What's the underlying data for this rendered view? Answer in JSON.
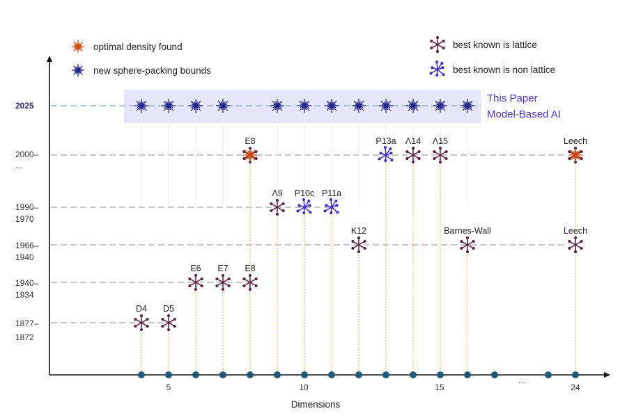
{
  "colors": {
    "lattice": "#5a1e3c",
    "non_lattice": "#3e2ad0",
    "optimal": "#d04a10",
    "new_bounds": "#26268c",
    "dimension_dot": "#1e5a78",
    "vline": "#f2c878",
    "gridline": "#b4b4b4",
    "band": "#e6e6fa",
    "paper_text": "#4a32c8"
  },
  "legend": {
    "optimal": "optimal density found",
    "new_bounds": "new sphere-packing bounds",
    "lattice": "best known is lattice",
    "non_lattice": "best known is non lattice"
  },
  "paper": {
    "line1": "This Paper",
    "line2": "Model-Based AI"
  },
  "x_axis": {
    "title": "Dimensions",
    "ticks": [
      "5",
      "10",
      "15",
      "24"
    ],
    "ellipsis": "..."
  },
  "chart_data": {
    "type": "scatter",
    "xlabel": "Dimensions",
    "ylabel": "",
    "y_categories": [
      [
        "1877–",
        "1872"
      ],
      [
        "1940–",
        "1934"
      ],
      [
        "1966–",
        "1940"
      ],
      [
        "1990–",
        "1970"
      ],
      [
        "2000–",
        "..."
      ],
      [
        "2025"
      ]
    ],
    "dimension_dots": [
      4,
      5,
      6,
      7,
      8,
      9,
      10,
      11,
      12,
      13,
      14,
      15,
      16,
      17,
      19,
      20
    ],
    "dimension_dots_note": "positions 17, 19, 20 shown; 19 and 20 stand for 23 and 24 on the compressed axis",
    "packings": [
      {
        "label": "D4",
        "dim": 4,
        "era": 0,
        "kind": "lattice"
      },
      {
        "label": "D5",
        "dim": 5,
        "era": 0,
        "kind": "lattice"
      },
      {
        "label": "E6",
        "dim": 6,
        "era": 1,
        "kind": "lattice"
      },
      {
        "label": "E7",
        "dim": 7,
        "era": 1,
        "kind": "lattice"
      },
      {
        "label": "E8",
        "dim": 8,
        "era": 1,
        "kind": "lattice"
      },
      {
        "label": "K12",
        "dim": 12,
        "era": 2,
        "kind": "lattice"
      },
      {
        "label": "Barnes-Wall",
        "dim": 16,
        "era": 2,
        "kind": "lattice"
      },
      {
        "label": "Leech",
        "dim": 24,
        "era": 2,
        "kind": "lattice"
      },
      {
        "label": "Λ9",
        "dim": 9,
        "era": 3,
        "kind": "lattice"
      },
      {
        "label": "P10c",
        "dim": 10,
        "era": 3,
        "kind": "non_lattice"
      },
      {
        "label": "P11a",
        "dim": 11,
        "era": 3,
        "kind": "non_lattice"
      },
      {
        "label": "E8",
        "dim": 8,
        "era": 4,
        "kind": "optimal"
      },
      {
        "label": "P13a",
        "dim": 13,
        "era": 4,
        "kind": "non_lattice"
      },
      {
        "label": "Λ14",
        "dim": 14,
        "era": 4,
        "kind": "lattice"
      },
      {
        "label": "Λ15",
        "dim": 15,
        "era": 4,
        "kind": "lattice"
      },
      {
        "label": "Leech",
        "dim": 24,
        "era": 4,
        "kind": "optimal"
      }
    ],
    "new_bounds_dims": [
      4,
      5,
      6,
      7,
      9,
      10,
      11,
      12,
      13,
      14,
      15,
      16
    ]
  }
}
